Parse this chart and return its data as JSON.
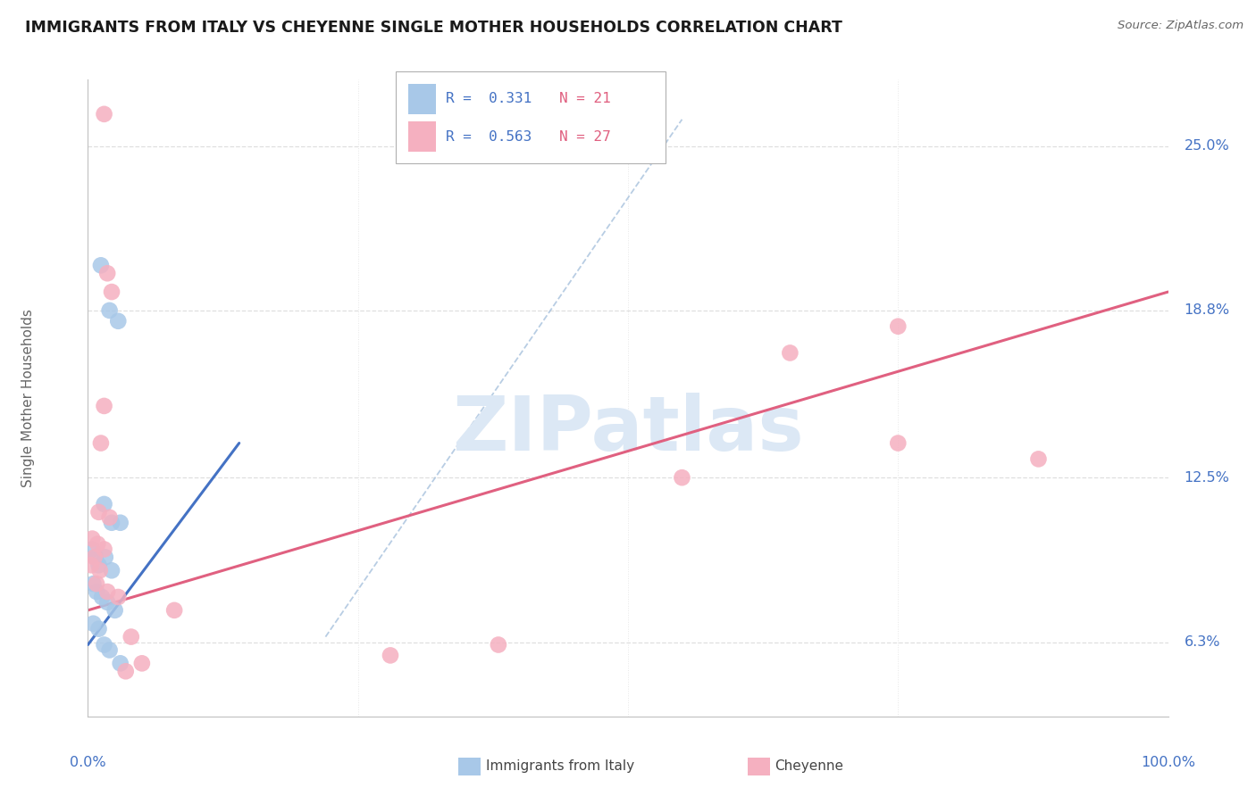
{
  "title": "IMMIGRANTS FROM ITALY VS CHEYENNE SINGLE MOTHER HOUSEHOLDS CORRELATION CHART",
  "source": "Source: ZipAtlas.com",
  "ylabel": "Single Mother Households",
  "yticks": [
    6.3,
    12.5,
    18.8,
    25.0
  ],
  "ytick_labels": [
    "6.3%",
    "12.5%",
    "18.8%",
    "25.0%"
  ],
  "xlim": [
    0.0,
    100.0
  ],
  "ylim": [
    3.5,
    27.5
  ],
  "legend_r_blue": "R =  0.331",
  "legend_n_blue": "N = 21",
  "legend_r_pink": "R =  0.563",
  "legend_n_pink": "N = 27",
  "blue_color": "#a8c8e8",
  "pink_color": "#f5b0c0",
  "blue_line_color": "#4472c4",
  "pink_line_color": "#e06080",
  "dashed_line_color": "#9ab8d8",
  "blue_points": [
    [
      1.2,
      20.5
    ],
    [
      2.0,
      18.8
    ],
    [
      2.8,
      18.4
    ],
    [
      1.5,
      11.5
    ],
    [
      2.2,
      10.8
    ],
    [
      3.0,
      10.8
    ],
    [
      0.4,
      9.8
    ],
    [
      0.7,
      9.5
    ],
    [
      1.0,
      9.2
    ],
    [
      1.6,
      9.5
    ],
    [
      2.2,
      9.0
    ],
    [
      0.5,
      8.5
    ],
    [
      0.8,
      8.2
    ],
    [
      1.3,
      8.0
    ],
    [
      1.8,
      7.8
    ],
    [
      2.5,
      7.5
    ],
    [
      0.5,
      7.0
    ],
    [
      1.0,
      6.8
    ],
    [
      1.5,
      6.2
    ],
    [
      2.0,
      6.0
    ],
    [
      3.0,
      5.5
    ]
  ],
  "pink_points": [
    [
      1.5,
      26.2
    ],
    [
      1.8,
      20.2
    ],
    [
      2.2,
      19.5
    ],
    [
      1.5,
      15.2
    ],
    [
      1.2,
      13.8
    ],
    [
      65.0,
      17.2
    ],
    [
      75.0,
      18.2
    ],
    [
      55.0,
      12.5
    ],
    [
      1.0,
      11.2
    ],
    [
      2.0,
      11.0
    ],
    [
      0.4,
      10.2
    ],
    [
      0.9,
      10.0
    ],
    [
      1.5,
      9.8
    ],
    [
      0.6,
      9.5
    ],
    [
      0.3,
      9.2
    ],
    [
      1.1,
      9.0
    ],
    [
      0.8,
      8.5
    ],
    [
      1.8,
      8.2
    ],
    [
      2.8,
      8.0
    ],
    [
      8.0,
      7.5
    ],
    [
      38.0,
      6.2
    ],
    [
      28.0,
      5.8
    ],
    [
      4.0,
      6.5
    ],
    [
      3.5,
      5.2
    ],
    [
      5.0,
      5.5
    ],
    [
      88.0,
      13.2
    ],
    [
      75.0,
      13.8
    ]
  ],
  "blue_trend_x": [
    0.0,
    14.0
  ],
  "blue_trend_y": [
    6.2,
    13.8
  ],
  "pink_trend_x": [
    0.0,
    100.0
  ],
  "pink_trend_y": [
    7.5,
    19.5
  ],
  "dashed_trend_x": [
    22.0,
    55.0
  ],
  "dashed_trend_y": [
    6.5,
    26.0
  ],
  "watermark_text": "ZIPatlas",
  "watermark_color": "#dce8f5",
  "background_color": "#ffffff",
  "grid_color": "#d8d8d8",
  "axis_color": "#c0c0c0",
  "title_color": "#1a1a1a",
  "label_color": "#4472c4",
  "ylabel_color": "#666666"
}
